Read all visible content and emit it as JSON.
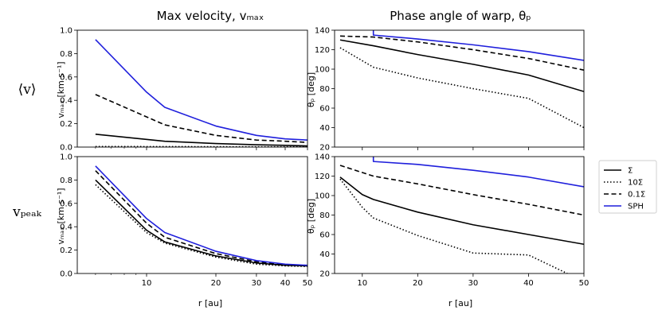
{
  "figure": {
    "col_titles": [
      "Max velocity, vₘₐₓ",
      "Phase angle of warp, θₚ"
    ],
    "row_labels": [
      "⟨v⟩",
      "vₚₑₐₖ"
    ],
    "xlabel_left": "r [au]",
    "xlabel_right": "r [au]",
    "ylabel_vmax": "vₘₐₓ [km s⁻¹]",
    "ylabel_theta": "θₚ [deg]"
  },
  "legend": {
    "placement": "right",
    "entries": [
      {
        "label": "Σ",
        "style": "solid",
        "color": "#000000"
      },
      {
        "label": "10Σ",
        "style": "dotted",
        "color": "#000000"
      },
      {
        "label": "0.1Σ",
        "style": "dashed",
        "color": "#000000"
      },
      {
        "label": "SPH",
        "style": "solid",
        "color": "#1f1fdc"
      }
    ]
  },
  "chart_data": [
    {
      "id": "mean-vmax",
      "type": "line",
      "xscale": "log",
      "xlim": [
        5,
        50
      ],
      "ylim": [
        0,
        1.0
      ],
      "xticks": [
        10,
        20,
        30,
        40,
        50
      ],
      "xtick_labels": [
        "",
        "",
        "",
        "",
        ""
      ],
      "yticks": [
        0,
        0.2,
        0.4,
        0.6,
        0.8,
        1.0
      ],
      "ytick_labels": [
        "0.0",
        "0.2",
        "0.4",
        "0.6",
        "0.8",
        "1.0"
      ],
      "series": [
        {
          "style": "Σ",
          "x": [
            6,
            12,
            20,
            30,
            40,
            50
          ],
          "y": [
            0.11,
            0.05,
            0.03,
            0.02,
            0.015,
            0.01
          ]
        },
        {
          "style": "10Σ",
          "x": [
            6,
            12,
            20,
            30,
            40,
            50
          ],
          "y": [
            0.005,
            0.004,
            0.003,
            0.002,
            0.002,
            0.002
          ]
        },
        {
          "style": "0.1Σ",
          "x": [
            6,
            12,
            20,
            30,
            40,
            50
          ],
          "y": [
            0.45,
            0.19,
            0.1,
            0.06,
            0.05,
            0.04
          ]
        },
        {
          "style": "SPH",
          "x": [
            6,
            10,
            12,
            20,
            30,
            40,
            50
          ],
          "y": [
            0.92,
            0.47,
            0.34,
            0.18,
            0.1,
            0.07,
            0.06
          ]
        }
      ]
    },
    {
      "id": "mean-theta",
      "type": "line",
      "xscale": "linear",
      "xlim": [
        5,
        50
      ],
      "ylim": [
        20,
        140
      ],
      "xticks": [
        10,
        20,
        30,
        40,
        50
      ],
      "xtick_labels": [
        "",
        "",
        "",
        "",
        ""
      ],
      "yticks": [
        20,
        40,
        60,
        80,
        100,
        120,
        140
      ],
      "ytick_labels": [
        "20",
        "40",
        "60",
        "80",
        "100",
        "120",
        "140"
      ],
      "series": [
        {
          "style": "Σ",
          "x": [
            6,
            12,
            20,
            30,
            40,
            50
          ],
          "y": [
            130,
            124,
            115,
            105,
            94,
            77
          ]
        },
        {
          "style": "10Σ",
          "x": [
            6,
            12,
            20,
            30,
            40,
            50
          ],
          "y": [
            122,
            102,
            91,
            80,
            70,
            40
          ]
        },
        {
          "style": "0.1Σ",
          "x": [
            6,
            12,
            20,
            30,
            40,
            50
          ],
          "y": [
            134,
            133,
            128,
            120,
            111,
            99
          ]
        },
        {
          "style": "SPH",
          "x": [
            12,
            12,
            20,
            30,
            40,
            50
          ],
          "y": [
            140,
            135,
            131,
            125,
            118,
            109
          ]
        }
      ]
    },
    {
      "id": "peak-vmax",
      "type": "line",
      "xscale": "log",
      "xlim": [
        5,
        50
      ],
      "ylim": [
        0,
        1.0
      ],
      "xticks": [
        10,
        20,
        30,
        40,
        50
      ],
      "xtick_labels": [
        "10",
        "20",
        "30",
        "40",
        "50"
      ],
      "yticks": [
        0,
        0.2,
        0.4,
        0.6,
        0.8,
        1.0
      ],
      "ytick_labels": [
        "0.0",
        "0.2",
        "0.4",
        "0.6",
        "0.8",
        "1.0"
      ],
      "series": [
        {
          "style": "Σ",
          "x": [
            6,
            10,
            12,
            20,
            30,
            40,
            50
          ],
          "y": [
            0.8,
            0.37,
            0.27,
            0.15,
            0.09,
            0.07,
            0.065
          ]
        },
        {
          "style": "10Σ",
          "x": [
            6,
            10,
            12,
            20,
            30,
            40,
            50
          ],
          "y": [
            0.76,
            0.35,
            0.26,
            0.14,
            0.08,
            0.065,
            0.06
          ]
        },
        {
          "style": "0.1Σ",
          "x": [
            6,
            10,
            12,
            20,
            30,
            40,
            50
          ],
          "y": [
            0.88,
            0.43,
            0.31,
            0.17,
            0.1,
            0.075,
            0.065
          ]
        },
        {
          "style": "SPH",
          "x": [
            6,
            10,
            12,
            20,
            30,
            40,
            50
          ],
          "y": [
            0.92,
            0.47,
            0.35,
            0.19,
            0.11,
            0.08,
            0.07
          ]
        }
      ]
    },
    {
      "id": "peak-theta",
      "type": "line",
      "xscale": "linear",
      "xlim": [
        5,
        50
      ],
      "ylim": [
        20,
        140
      ],
      "xticks": [
        10,
        20,
        30,
        40,
        50
      ],
      "xtick_labels": [
        "10",
        "20",
        "30",
        "40",
        "50"
      ],
      "yticks": [
        20,
        40,
        60,
        80,
        100,
        120,
        140
      ],
      "ytick_labels": [
        "20",
        "40",
        "60",
        "80",
        "100",
        "120",
        "140"
      ],
      "series": [
        {
          "style": "Σ",
          "x": [
            6,
            10,
            12,
            20,
            30,
            40,
            50
          ],
          "y": [
            119,
            101,
            96,
            83,
            70,
            60,
            50
          ]
        },
        {
          "style": "10Σ",
          "x": [
            6,
            10,
            12,
            20,
            30,
            40,
            47
          ],
          "y": [
            117,
            88,
            77,
            59,
            41,
            39,
            20
          ]
        },
        {
          "style": "0.1Σ",
          "x": [
            6,
            12,
            20,
            30,
            40,
            50
          ],
          "y": [
            131,
            120,
            112,
            101,
            91,
            80
          ]
        },
        {
          "style": "SPH",
          "x": [
            12,
            12,
            20,
            30,
            40,
            50
          ],
          "y": [
            140,
            135,
            132,
            126,
            119,
            109
          ]
        }
      ]
    }
  ]
}
